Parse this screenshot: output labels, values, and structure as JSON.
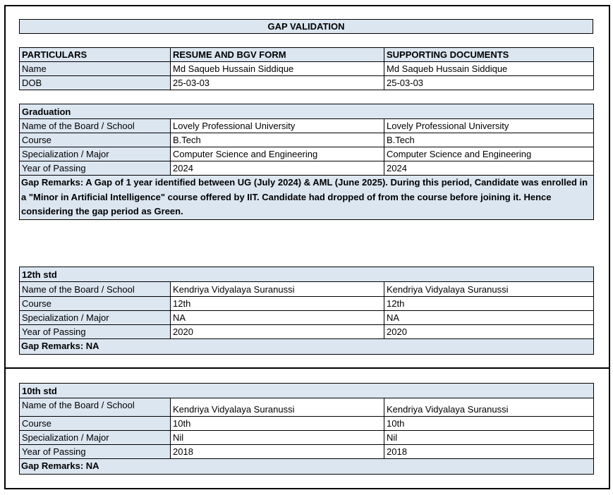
{
  "title": "GAP VALIDATION",
  "colors": {
    "header_bg": "#dce6f1",
    "border": "#000000"
  },
  "particulars": {
    "headers": [
      "PARTICULARS",
      "RESUME AND BGV FORM",
      "SUPPORTING DOCUMENTS"
    ],
    "rows": [
      [
        "Name",
        "Md Saqueb Hussain Siddique",
        "Md Saqueb Hussain Siddique"
      ],
      [
        "DOB",
        "25-03-03",
        "25-03-03"
      ]
    ]
  },
  "sections": [
    {
      "heading": "Graduation",
      "rows": [
        [
          "Name of the Board / School",
          "Lovely Professional University",
          "Lovely Professional University"
        ],
        [
          "Course",
          "B.Tech",
          "B.Tech"
        ],
        [
          "Specialization / Major",
          "Computer Science and Engineering",
          "Computer Science and Engineering"
        ],
        [
          "Year of Passing",
          "2024",
          "2024"
        ]
      ],
      "remarks": "Gap Remarks: A Gap of 1 year identified between UG (July 2024) & AML (June 2025). During this period, Candidate was enrolled in a \"Minor in Artificial Intelligence\" course offered by IIT. Candidate had dropped of from the course before joining it. Hence considering the gap period as Green."
    },
    {
      "heading": "12th std",
      "rows": [
        [
          "Name of the Board / School",
          "Kendriya Vidyalaya Suranussi",
          "Kendriya Vidyalaya Suranussi"
        ],
        [
          "Course",
          "12th",
          "12th"
        ],
        [
          "Specialization / Major",
          "NA",
          "NA"
        ],
        [
          "Year of Passing",
          "2020",
          "2020"
        ]
      ],
      "remarks": "Gap Remarks: NA"
    },
    {
      "heading": "10th std",
      "rows": [
        [
          "Name of the Board / School",
          "Kendriya Vidyalaya Suranussi",
          "Kendriya Vidyalaya Suranussi"
        ],
        [
          "Course",
          "10th",
          "10th"
        ],
        [
          "Specialization / Major",
          "Nil",
          "Nil"
        ],
        [
          "Year of Passing",
          "2018",
          "2018"
        ]
      ],
      "remarks": "Gap Remarks: NA"
    }
  ]
}
